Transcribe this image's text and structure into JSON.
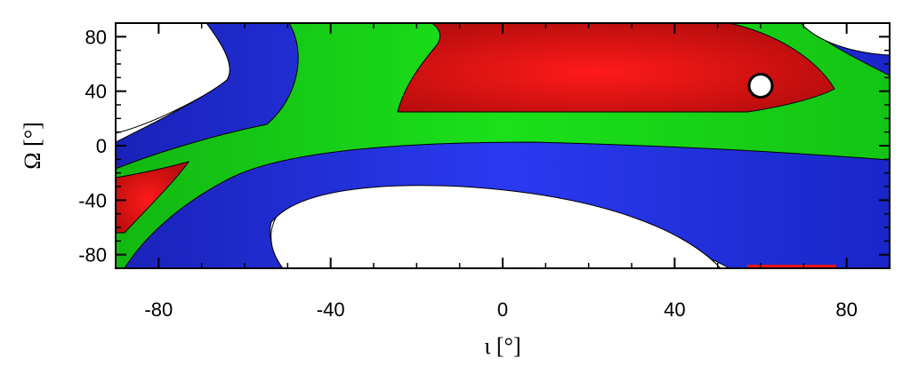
{
  "chart_data": {
    "type": "heatmap",
    "xlabel": "ι [°]",
    "ylabel": "Ω [°]",
    "xlim": [
      -90,
      90
    ],
    "ylim": [
      -90,
      90
    ],
    "xticks": [
      "-80",
      "-40",
      "0",
      "40",
      "80"
    ],
    "xtick_values": [
      -80,
      -40,
      0,
      40,
      80
    ],
    "yticks": [
      "80",
      "40",
      "0",
      "-40",
      "-80"
    ],
    "ytick_values": [
      80,
      40,
      0,
      -40,
      -80
    ],
    "contour_levels": [
      {
        "level": "outer",
        "color": "#1f2fd6"
      },
      {
        "level": "middle",
        "color": "#18d418"
      },
      {
        "level": "inner",
        "color": "#e81414"
      }
    ],
    "marker": {
      "x": 60,
      "y": 44,
      "shape": "circle",
      "fill": "#ffffff"
    }
  }
}
